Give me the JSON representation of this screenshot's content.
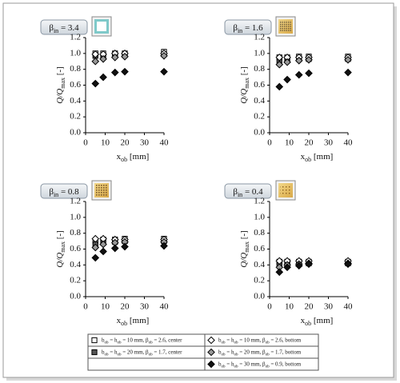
{
  "chart_data": [
    {
      "type": "scatter",
      "badge": [
        "β",
        "in",
        " = 3.4"
      ],
      "icon": "open",
      "x_label": [
        "x",
        "ob",
        " [mm]"
      ],
      "y_label": [
        "Q/Q",
        "max",
        " [-]"
      ],
      "x": [
        5,
        9,
        15,
        20,
        40
      ],
      "xlim": [
        0,
        40
      ],
      "xticks": [
        0,
        10,
        20,
        30,
        40
      ],
      "ylim": [
        0,
        1.2
      ],
      "yticks": [
        {
          "value": 0,
          "label": "0.0"
        },
        0.2,
        0.4,
        0.6,
        0.8,
        {
          "value": 1,
          "label": "1.0"
        },
        1.2
      ],
      "series": [
        {
          "values": [
            1.0,
            1.0,
            1.0,
            1.0,
            1.02
          ]
        },
        {
          "values": [
            0.97,
            0.97,
            0.98,
            0.98,
            0.99
          ]
        },
        {
          "values": [
            0.99,
            0.99,
            1.0,
            1.0,
            1.0
          ]
        },
        {
          "values": [
            0.9,
            0.93,
            0.95,
            0.96,
            0.97
          ]
        },
        {
          "values": [
            0.62,
            0.7,
            0.76,
            0.77,
            0.77
          ]
        }
      ]
    },
    {
      "type": "scatter",
      "badge": [
        "β",
        "in",
        " = 1.6"
      ],
      "icon": "dense",
      "x_label": [
        "x",
        "ob",
        " [mm]"
      ],
      "y_label": [
        "Q/Q",
        "max",
        " [-]"
      ],
      "x": [
        5,
        9,
        15,
        20,
        40
      ],
      "xlim": [
        0,
        40
      ],
      "xticks": [
        0,
        10,
        20,
        30,
        40
      ],
      "ylim": [
        0,
        1.2
      ],
      "yticks": [
        {
          "value": 0,
          "label": "0.0"
        },
        0.2,
        0.4,
        0.6,
        0.8,
        {
          "value": 1,
          "label": "1.0"
        },
        1.2
      ],
      "series": [
        {
          "values": [
            0.95,
            0.95,
            0.96,
            0.96,
            0.96
          ]
        },
        {
          "values": [
            0.91,
            0.92,
            0.93,
            0.93,
            0.93
          ]
        },
        {
          "values": [
            0.95,
            0.95,
            0.95,
            0.95,
            0.95
          ]
        },
        {
          "values": [
            0.86,
            0.89,
            0.91,
            0.92,
            0.92
          ]
        },
        {
          "values": [
            0.58,
            0.67,
            0.73,
            0.75,
            0.76
          ]
        }
      ]
    },
    {
      "type": "scatter",
      "badge": [
        "β",
        "in",
        " = 0.8"
      ],
      "icon": "checker",
      "x_label": [
        "x",
        "ob",
        " [mm]"
      ],
      "y_label": [
        "Q/Q",
        "max",
        " [-]"
      ],
      "x": [
        5,
        9,
        15,
        20,
        40
      ],
      "xlim": [
        0,
        40
      ],
      "xticks": [
        0,
        10,
        20,
        30,
        40
      ],
      "ylim": [
        0,
        1.2
      ],
      "yticks": [
        {
          "value": 0,
          "label": "0.0"
        },
        0.2,
        0.4,
        0.6,
        0.8,
        {
          "value": 1,
          "label": "1.0"
        },
        1.2
      ],
      "series": [
        {
          "values": [
            0.7,
            0.72,
            0.72,
            0.73,
            0.73
          ]
        },
        {
          "values": [
            0.66,
            0.68,
            0.69,
            0.7,
            0.7
          ]
        },
        {
          "values": [
            0.73,
            0.73,
            0.72,
            0.72,
            0.72
          ]
        },
        {
          "values": [
            0.62,
            0.66,
            0.68,
            0.69,
            0.69
          ]
        },
        {
          "values": [
            0.49,
            0.57,
            0.61,
            0.63,
            0.64
          ]
        }
      ]
    },
    {
      "type": "scatter",
      "badge": [
        "β",
        "in",
        " = 0.4"
      ],
      "icon": "sparse",
      "x_label": [
        "x",
        "ob",
        " [mm]"
      ],
      "y_label": [
        "Q/Q",
        "max",
        " [-]"
      ],
      "x": [
        5,
        9,
        15,
        20,
        40
      ],
      "xlim": [
        0,
        40
      ],
      "xticks": [
        0,
        10,
        20,
        30,
        40
      ],
      "ylim": [
        0,
        1.2
      ],
      "yticks": [
        {
          "value": 0,
          "label": "0.0"
        },
        0.2,
        0.4,
        0.6,
        0.8,
        {
          "value": 1,
          "label": "1.0"
        },
        1.2
      ],
      "series": [
        {
          "values": [
            0.44,
            0.44,
            0.44,
            0.44,
            0.44
          ]
        },
        {
          "values": [
            0.4,
            0.41,
            0.42,
            0.42,
            0.42
          ]
        },
        {
          "values": [
            0.45,
            0.45,
            0.45,
            0.45,
            0.45
          ]
        },
        {
          "values": [
            0.37,
            0.4,
            0.41,
            0.42,
            0.42
          ]
        },
        {
          "values": [
            0.31,
            0.37,
            0.39,
            0.41,
            0.41
          ]
        }
      ]
    }
  ],
  "legend": [
    {
      "name": [
        "b",
        "ob",
        " = h",
        "ob",
        " = 10 mm, β",
        "ob",
        " = 2.6, center"
      ],
      "marker": "square",
      "color": "#ffffff"
    },
    {
      "name": [
        "b",
        "ob",
        " = h",
        "ob",
        " = 20 mm, β",
        "ob",
        " = 1.7, center"
      ],
      "marker": "square",
      "color": "#555555"
    },
    {
      "name": [
        "b",
        "ob",
        " = h",
        "ob",
        " = 10 mm, β",
        "ob",
        " = 2.6, bottom"
      ],
      "marker": "diamond",
      "color": "#ffffff"
    },
    {
      "name": [
        "b",
        "ob",
        " = h",
        "ob",
        " = 20 mm, β",
        "ob",
        " = 1.7, bottom"
      ],
      "marker": "diamond",
      "color": "#999999"
    },
    {
      "name": [
        "b",
        "ob",
        " = h",
        "ob",
        " = 30 mm, β",
        "ob",
        " = 0.9, bottom"
      ],
      "marker": "diamond",
      "color": "#111111"
    }
  ]
}
